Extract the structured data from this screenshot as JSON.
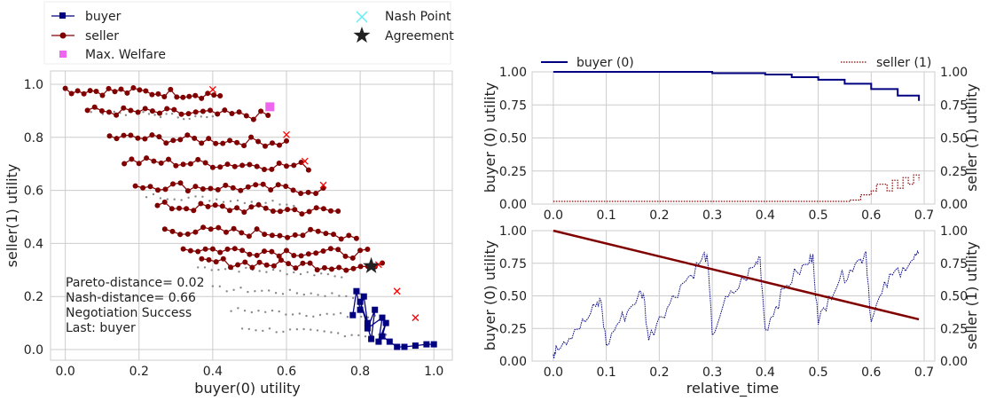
{
  "colors": {
    "buyer": "#000080",
    "seller": "#800000",
    "welfare": "#ee66ee",
    "nash": "#66eeee",
    "agreement": "#222222",
    "offers_gray": "#888888",
    "rejected": "#ff0000",
    "grid": "#cccccc"
  },
  "chart_data": [
    {
      "type": "scatter",
      "xlabel": "buyer(0) utility",
      "ylabel": "seller(1) utility",
      "xlim": [
        -0.04,
        1.05
      ],
      "ylim": [
        -0.04,
        1.05
      ],
      "xticks": [
        "0.0",
        "0.2",
        "0.4",
        "0.6",
        "0.8",
        "1.0"
      ],
      "yticks": [
        "0.0",
        "0.2",
        "0.4",
        "0.6",
        "0.8",
        "1.0"
      ],
      "grid": true,
      "legend": {
        "placement": "top-left",
        "entries": [
          "buyer",
          "seller",
          "Max. Welfare",
          "Nash Point",
          "Agreement"
        ]
      },
      "annotation": [
        "Pareto-distance= 0.02",
        "Nash-distance= 0.66",
        "Negotiation Success",
        "Last: buyer"
      ],
      "max_welfare": {
        "x": 0.555,
        "y": 0.915
      },
      "agreement": {
        "x": 0.83,
        "y": 0.315
      },
      "seller_bands": [
        {
          "x0": 0.0,
          "x1": 0.42,
          "y": 0.98
        },
        {
          "x0": 0.06,
          "x1": 0.55,
          "y": 0.9
        },
        {
          "x0": 0.12,
          "x1": 0.6,
          "y": 0.8
        },
        {
          "x0": 0.16,
          "x1": 0.66,
          "y": 0.71
        },
        {
          "x0": 0.19,
          "x1": 0.7,
          "y": 0.62
        },
        {
          "x0": 0.25,
          "x1": 0.74,
          "y": 0.54
        },
        {
          "x0": 0.27,
          "x1": 0.79,
          "y": 0.45
        },
        {
          "x0": 0.32,
          "x1": 0.82,
          "y": 0.38
        },
        {
          "x0": 0.37,
          "x1": 0.86,
          "y": 0.33
        }
      ],
      "gray_bands": [
        {
          "x0": 0.36,
          "x1": 0.75,
          "y": 0.28
        },
        {
          "x0": 0.4,
          "x1": 0.8,
          "y": 0.2
        },
        {
          "x0": 0.45,
          "x1": 0.84,
          "y": 0.12
        },
        {
          "x0": 0.48,
          "x1": 0.87,
          "y": 0.05
        },
        {
          "x0": 0.07,
          "x1": 0.4,
          "y": 0.87
        },
        {
          "x0": 0.22,
          "x1": 0.62,
          "y": 0.55
        }
      ],
      "rejected": [
        {
          "x": 0.4,
          "y": 0.98
        },
        {
          "x": 0.6,
          "y": 0.81
        },
        {
          "x": 0.65,
          "y": 0.71
        },
        {
          "x": 0.7,
          "y": 0.62
        },
        {
          "x": 0.85,
          "y": 0.32
        },
        {
          "x": 0.9,
          "y": 0.22
        },
        {
          "x": 0.95,
          "y": 0.12
        }
      ],
      "buyer_path": {
        "x": [
          0.78,
          0.79,
          0.8,
          0.81,
          0.82,
          0.8,
          0.83,
          0.84,
          0.82,
          0.86,
          0.85,
          0.87,
          0.86,
          0.88,
          0.9,
          0.92,
          0.95,
          0.98,
          1.0
        ],
        "y": [
          0.13,
          0.22,
          0.15,
          0.2,
          0.1,
          0.18,
          0.04,
          0.15,
          0.08,
          0.12,
          0.03,
          0.1,
          0.05,
          0.03,
          0.01,
          0.01,
          0.015,
          0.02,
          0.02
        ]
      }
    },
    {
      "type": "line",
      "xlabel": "",
      "ylabel": "buyer (0) utility",
      "ylabel_right": "seller (1) utility",
      "xlim": [
        -0.04,
        0.72
      ],
      "ylim": [
        0,
        1.0
      ],
      "xticks": [
        "0.0",
        "0.1",
        "0.2",
        "0.3",
        "0.4",
        "0.5",
        "0.6",
        "0.7"
      ],
      "yticks": [
        "0.00",
        "0.25",
        "0.50",
        "0.75",
        "1.00"
      ],
      "grid": true,
      "legend": {
        "placement": "top",
        "entries": [
          "buyer (0)",
          "seller (1)"
        ]
      },
      "series": [
        {
          "name": "buyer (0)",
          "x": [
            0.0,
            0.2,
            0.3,
            0.4,
            0.45,
            0.5,
            0.55,
            0.6,
            0.65,
            0.69
          ],
          "y": [
            1.0,
            1.0,
            0.99,
            0.98,
            0.96,
            0.94,
            0.91,
            0.87,
            0.82,
            0.78
          ]
        },
        {
          "name": "seller (1)",
          "x": [
            0.0,
            0.55,
            0.56,
            0.58,
            0.6,
            0.61,
            0.63,
            0.64,
            0.65,
            0.66,
            0.67,
            0.68,
            0.69
          ],
          "y": [
            0.02,
            0.02,
            0.03,
            0.07,
            0.1,
            0.15,
            0.1,
            0.18,
            0.12,
            0.2,
            0.15,
            0.22,
            0.18
          ]
        }
      ]
    },
    {
      "type": "line",
      "xlabel": "relative_time",
      "ylabel": "buyer (0) utility",
      "ylabel_right": "seller (1) utility",
      "xlim": [
        -0.04,
        0.72
      ],
      "ylim": [
        0,
        1.0
      ],
      "xticks": [
        "0.0",
        "0.1",
        "0.2",
        "0.3",
        "0.4",
        "0.5",
        "0.6",
        "0.7"
      ],
      "yticks": [
        "0.00",
        "0.25",
        "0.50",
        "0.75",
        "1.00"
      ],
      "grid": true,
      "series": [
        {
          "name": "seller",
          "x": [
            0.0,
            0.69
          ],
          "y": [
            1.0,
            0.32
          ]
        },
        {
          "name": "buyer",
          "x": [
            0.0,
            0.005,
            0.02,
            0.04,
            0.06,
            0.08,
            0.09,
            0.1,
            0.12,
            0.14,
            0.16,
            0.17,
            0.18,
            0.2,
            0.22,
            0.24,
            0.26,
            0.28,
            0.29,
            0.3,
            0.32,
            0.34,
            0.36,
            0.38,
            0.39,
            0.4,
            0.42,
            0.44,
            0.46,
            0.48,
            0.49,
            0.5,
            0.52,
            0.54,
            0.56,
            0.58,
            0.59,
            0.6,
            0.62,
            0.64,
            0.66,
            0.68,
            0.69
          ],
          "y": [
            0.05,
            0.12,
            0.15,
            0.24,
            0.3,
            0.42,
            0.46,
            0.12,
            0.28,
            0.38,
            0.5,
            0.52,
            0.16,
            0.34,
            0.44,
            0.58,
            0.66,
            0.78,
            0.82,
            0.2,
            0.42,
            0.52,
            0.63,
            0.73,
            0.8,
            0.24,
            0.42,
            0.58,
            0.68,
            0.74,
            0.82,
            0.28,
            0.5,
            0.62,
            0.7,
            0.78,
            0.84,
            0.3,
            0.52,
            0.66,
            0.72,
            0.78,
            0.82
          ]
        }
      ]
    }
  ]
}
